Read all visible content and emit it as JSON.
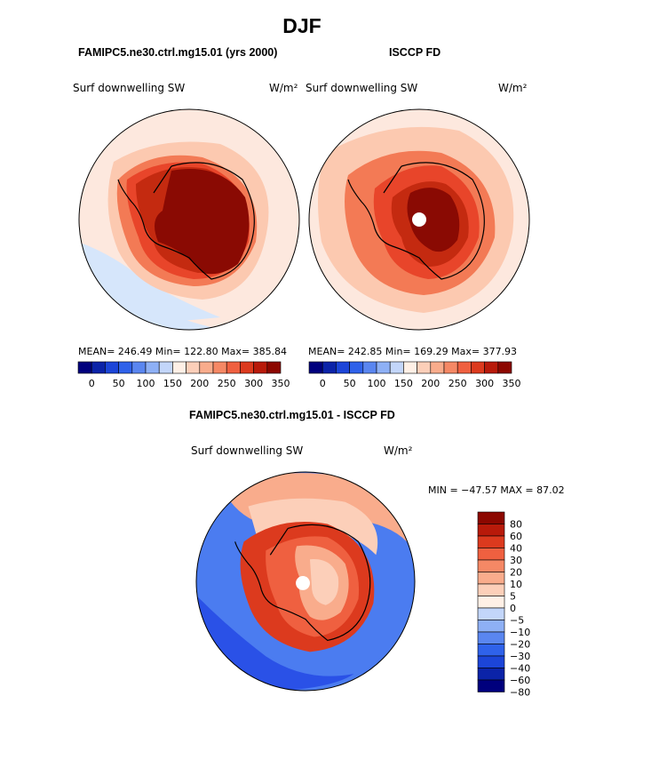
{
  "title": "DJF",
  "colors": {
    "ocean_light": "#fde8de",
    "ocean_mid": "#fcc9b0",
    "blue_pale": "#d6e6fb",
    "coast": "#000000",
    "antarctica_dark": "#8a0a03",
    "antarctica_mid": "#c42a10",
    "ring_red": "#e8452a",
    "ring_orange": "#f37a55",
    "diff_blue": "#4b7cf0",
    "diff_blue_dark": "#1c3fe3",
    "pole_hole": "#ffffff"
  },
  "panels": [
    {
      "case_title": "FAMIPC5.ne30.ctrl.mg15.01 (yrs 2000)",
      "variable": "Surf downwelling SW",
      "units": "W/m²",
      "stats": "MEAN= 246.49   Min= 122.80   Max= 385.84",
      "colorbar_labels": [
        "0",
        "50",
        "100",
        "150",
        "200",
        "250",
        "300",
        "350"
      ]
    },
    {
      "case_title": "ISCCP FD",
      "variable": "Surf downwelling SW",
      "units": "W/m²",
      "stats": "MEAN= 242.85   Min= 169.29   Max= 377.93",
      "colorbar_labels": [
        "0",
        "50",
        "100",
        "150",
        "200",
        "250",
        "300",
        "350"
      ]
    }
  ],
  "diff_panel": {
    "title": "FAMIPC5.ne30.ctrl.mg15.01 - ISCCP FD",
    "variable": "Surf downwelling SW",
    "units": "W/m²",
    "minmax": "MIN = −47.57 MAX =  87.02",
    "colorbar_labels": [
      "80",
      "60",
      "40",
      "30",
      "20",
      "10",
      "5",
      "0",
      "−5",
      "−10",
      "−20",
      "−30",
      "−40",
      "−60",
      "−80"
    ]
  },
  "colorbar_abs": [
    "#00007d",
    "#0b23a8",
    "#1c45d8",
    "#2f62ea",
    "#5a86f0",
    "#8eb0f5",
    "#c3d6fa",
    "#fff0e6",
    "#fccfb9",
    "#f9ac8c",
    "#f58865",
    "#ef6040",
    "#dc3a1e",
    "#b81a0a",
    "#8c0700"
  ],
  "colorbar_diff": [
    "#8c0700",
    "#b81a0a",
    "#dc3a1e",
    "#ef6040",
    "#f58865",
    "#f9ac8c",
    "#fccfb9",
    "#fff0e6",
    "#c3d6fa",
    "#8eb0f5",
    "#5a86f0",
    "#2f62ea",
    "#1c45d8",
    "#0b23a8",
    "#00007d"
  ]
}
